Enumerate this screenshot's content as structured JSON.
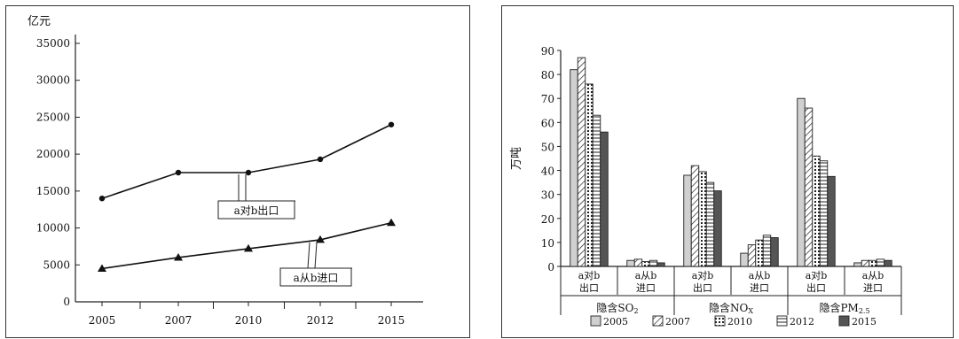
{
  "chart_data": [
    {
      "type": "line",
      "ylabel": "亿元",
      "x": [
        "2005",
        "2007",
        "2010",
        "2012",
        "2015"
      ],
      "ylim": [
        0,
        35000
      ],
      "yticks": [
        "35000",
        "30000",
        "25000",
        "20000",
        "15000",
        "10000",
        "5000",
        "0"
      ],
      "series": [
        {
          "name": "a对b出口",
          "values": [
            14000,
            17500,
            17500,
            19300,
            24000
          ],
          "marker": "circle"
        },
        {
          "name": "a从b进口",
          "values": [
            4500,
            6000,
            7200,
            8400,
            10700
          ],
          "marker": "triangle"
        }
      ],
      "grid": false
    },
    {
      "type": "bar",
      "ylabel": "万吨",
      "ylim": [
        0,
        90
      ],
      "yticks": [
        "90",
        "80",
        "70",
        "60",
        "50",
        "40",
        "30",
        "20",
        "10",
        "0"
      ],
      "categories": [
        {
          "line1": "a对b",
          "line2": "出口"
        },
        {
          "line1": "a从b",
          "line2": "进口"
        },
        {
          "line1": "a对b",
          "line2": "出口"
        },
        {
          "line1": "a从b",
          "line2": "进口"
        },
        {
          "line1": "a对b",
          "line2": "出口"
        },
        {
          "line1": "a从b",
          "line2": "进口"
        }
      ],
      "groups": [
        {
          "prefix": "隐含",
          "main": "SO",
          "sub": "2"
        },
        {
          "prefix": "隐含",
          "main": "NO",
          "sub": "X"
        },
        {
          "prefix": "隐含",
          "main": "PM",
          "sub": "2.5"
        }
      ],
      "series": [
        {
          "name": "2005",
          "values": [
            82,
            2.5,
            38,
            5.5,
            70,
            1.5
          ]
        },
        {
          "name": "2007",
          "values": [
            87,
            3,
            42,
            9,
            66,
            2.5
          ]
        },
        {
          "name": "2010",
          "values": [
            76,
            2,
            39.5,
            11,
            46,
            2.5
          ]
        },
        {
          "name": "2012",
          "values": [
            63,
            2.5,
            35,
            13,
            44,
            3
          ]
        },
        {
          "name": "2015",
          "values": [
            56,
            1.5,
            31.5,
            12,
            37.5,
            2.5
          ]
        }
      ],
      "legend_position": "bottom",
      "grid": false
    }
  ],
  "colors": {
    "axis": "#222222",
    "bar_2005": "#d0d0d0",
    "bar_2015": "#555555"
  }
}
